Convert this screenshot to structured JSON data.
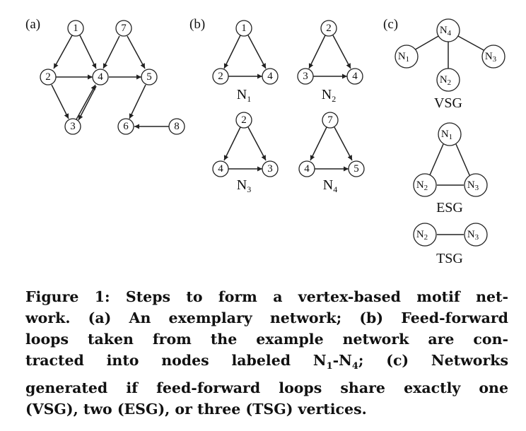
{
  "figure": {
    "panel_a": {
      "label": "(a)",
      "nodes": [
        "1",
        "2",
        "3",
        "4",
        "5",
        "6",
        "7",
        "8"
      ]
    },
    "panel_b": {
      "label": "(b)",
      "motifs": [
        {
          "top": "1",
          "left": "2",
          "right": "4",
          "name": "N",
          "sub": "1"
        },
        {
          "top": "2",
          "left": "3",
          "right": "4",
          "name": "N",
          "sub": "2"
        },
        {
          "top": "2",
          "left": "4",
          "right": "3",
          "name": "N",
          "sub": "3"
        },
        {
          "top": "7",
          "left": "4",
          "right": "5",
          "name": "N",
          "sub": "4"
        }
      ]
    },
    "panel_c": {
      "label": "(c)",
      "node_base": "N",
      "vsg": {
        "center_sub": "4",
        "left_sub": "1",
        "bottom_sub": "2",
        "right_sub": "3",
        "caption": "VSG"
      },
      "esg": {
        "top_sub": "1",
        "left_sub": "2",
        "right_sub": "3",
        "caption": "ESG"
      },
      "tsg": {
        "left_sub": "2",
        "right_sub": "3",
        "caption": "TSG"
      }
    }
  },
  "caption": {
    "lines": [
      "Figure 1: Steps to form a vertex-based motif net-",
      "work. (a) An exemplary network; (b) Feed-forward",
      "loops taken from the example network are con-",
      "tracted into nodes labeled N",
      "generated if feed-forward loops share exactly one",
      "(VSG), two (ESG), or three (TSG) vertices."
    ],
    "line4_sub1": "1",
    "line4_mid": "-N",
    "line4_sub2": "4",
    "line4_end": ";  (c) Networks"
  }
}
